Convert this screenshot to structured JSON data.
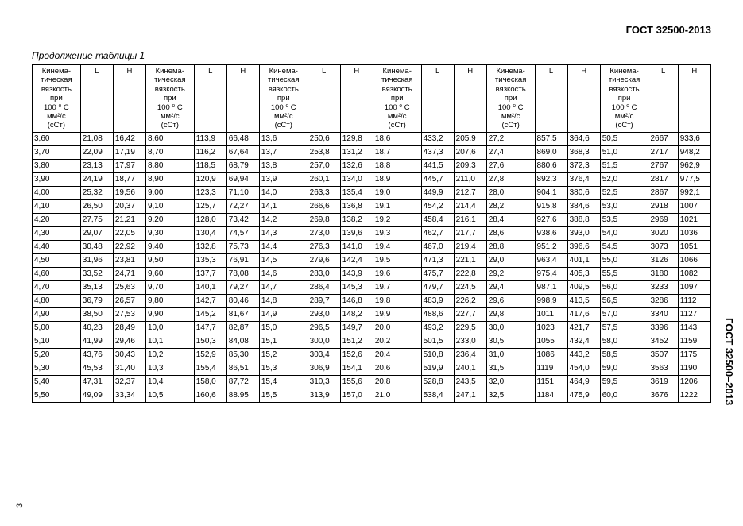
{
  "doc": {
    "standard": "ГОСТ 32500-2013",
    "caption": "Продолжение таблицы 1",
    "side_label": "ГОСТ 32500–2013",
    "page": "3"
  },
  "header_block": {
    "visc": "Кинема-\nтическая\nвязкость\nпри\n100 ⁰ С\nмм²/с\n(сСт)",
    "L": "L",
    "H": "H"
  },
  "rows": [
    [
      "3,60",
      "21,08",
      "16,42",
      "8,60",
      "113,9",
      "66,48",
      "13,6",
      "250,6",
      "129,8",
      "18,6",
      "433,2",
      "205,9",
      "27,2",
      "857,5",
      "364,6",
      "50,5",
      "2667",
      "933,6"
    ],
    [
      "3,70",
      "22,09",
      "17,19",
      "8,70",
      "116,2",
      "67,64",
      "13,7",
      "253,8",
      "131,2",
      "18,7",
      "437,3",
      "207,6",
      "27,4",
      "869,0",
      "368,3",
      "51,0",
      "2717",
      "948,2"
    ],
    [
      "3,80",
      "23,13",
      "17,97",
      "8,80",
      "118,5",
      "68,79",
      "13,8",
      "257,0",
      "132,6",
      "18,8",
      "441,5",
      "209,3",
      "27,6",
      "880,6",
      "372,3",
      "51,5",
      "2767",
      "962,9"
    ],
    [
      "3,90",
      "24,19",
      "18,77",
      "8,90",
      "120,9",
      "69,94",
      "13,9",
      "260,1",
      "134,0",
      "18,9",
      "445,7",
      "211,0",
      "27,8",
      "892,3",
      "376,4",
      "52,0",
      "2817",
      "977,5"
    ],
    [
      "4,00",
      "25,32",
      "19,56",
      "9,00",
      "123,3",
      "71,10",
      "14,0",
      "263,3",
      "135,4",
      "19,0",
      "449,9",
      "212,7",
      "28,0",
      "904,1",
      "380,6",
      "52,5",
      "2867",
      "992,1"
    ],
    [
      "4,10",
      "26,50",
      "20,37",
      "9,10",
      "125,7",
      "72,27",
      "14,1",
      "266,6",
      "136,8",
      "19,1",
      "454,2",
      "214,4",
      "28,2",
      "915,8",
      "384,6",
      "53,0",
      "2918",
      "1007"
    ],
    [
      "4,20",
      "27,75",
      "21,21",
      "9,20",
      "128,0",
      "73,42",
      "14,2",
      "269,8",
      "138,2",
      "19,2",
      "458,4",
      "216,1",
      "28,4",
      "927,6",
      "388,8",
      "53,5",
      "2969",
      "1021"
    ],
    [
      "4,30",
      "29,07",
      "22,05",
      "9,30",
      "130,4",
      "74,57",
      "14,3",
      "273,0",
      "139,6",
      "19,3",
      "462,7",
      "217,7",
      "28,6",
      "938,6",
      "393,0",
      "54,0",
      "3020",
      "1036"
    ],
    [
      "4,40",
      "30,48",
      "22,92",
      "9,40",
      "132,8",
      "75,73",
      "14,4",
      "276,3",
      "141,0",
      "19,4",
      "467,0",
      "219,4",
      "28,8",
      "951,2",
      "396,6",
      "54,5",
      "3073",
      "1051"
    ],
    [
      "4,50",
      "31,96",
      "23,81",
      "9,50",
      "135,3",
      "76,91",
      "14,5",
      "279,6",
      "142,4",
      "19,5",
      "471,3",
      "221,1",
      "29,0",
      "963,4",
      "401,1",
      "55,0",
      "3126",
      "1066"
    ],
    [
      "4,60",
      "33,52",
      "24,71",
      "9,60",
      "137,7",
      "78,08",
      "14,6",
      "283,0",
      "143,9",
      "19,6",
      "475,7",
      "222,8",
      "29,2",
      "975,4",
      "405,3",
      "55,5",
      "3180",
      "1082"
    ],
    [
      "4,70",
      "35,13",
      "25,63",
      "9,70",
      "140,1",
      "79,27",
      "14,7",
      "286,4",
      "145,3",
      "19,7",
      "479,7",
      "224,5",
      "29,4",
      "987,1",
      "409,5",
      "56,0",
      "3233",
      "1097"
    ],
    [
      "4,80",
      "36,79",
      "26,57",
      "9,80",
      "142,7",
      "80,46",
      "14,8",
      "289,7",
      "146,8",
      "19,8",
      "483,9",
      "226,2",
      "29,6",
      "998,9",
      "413,5",
      "56,5",
      "3286",
      "1112"
    ],
    [
      "4,90",
      "38,50",
      "27,53",
      "9,90",
      "145,2",
      "81,67",
      "14,9",
      "293,0",
      "148,2",
      "19,9",
      "488,6",
      "227,7",
      "29,8",
      "1011",
      "417,6",
      "57,0",
      "3340",
      "1127"
    ],
    [
      "5,00",
      "40,23",
      "28,49",
      "10,0",
      "147,7",
      "82,87",
      "15,0",
      "296,5",
      "149,7",
      "20,0",
      "493,2",
      "229,5",
      "30,0",
      "1023",
      "421,7",
      "57,5",
      "3396",
      "1143"
    ],
    [
      "5,10",
      "41,99",
      "29,46",
      "10,1",
      "150,3",
      "84,08",
      "15,1",
      "300,0",
      "151,2",
      "20,2",
      "501,5",
      "233,0",
      "30,5",
      "1055",
      "432,4",
      "58,0",
      "3452",
      "1159"
    ],
    [
      "5,20",
      "43,76",
      "30,43",
      "10,2",
      "152,9",
      "85,30",
      "15,2",
      "303,4",
      "152,6",
      "20,4",
      "510,8",
      "236,4",
      "31,0",
      "1086",
      "443,2",
      "58,5",
      "3507",
      "1175"
    ],
    [
      "5,30",
      "45,53",
      "31,40",
      "10,3",
      "155,4",
      "86,51",
      "15,3",
      "306,9",
      "154,1",
      "20,6",
      "519,9",
      "240,1",
      "31,5",
      "1119",
      "454,0",
      "59,0",
      "3563",
      "1190"
    ],
    [
      "5,40",
      "47,31",
      "32,37",
      "10,4",
      "158,0",
      "87,72",
      "15,4",
      "310,3",
      "155,6",
      "20,8",
      "528,8",
      "243,5",
      "32,0",
      "1151",
      "464,9",
      "59,5",
      "3619",
      "1206"
    ],
    [
      "5,50",
      "49,09",
      "33,34",
      "10,5",
      "160,6",
      "88.95",
      "15,5",
      "313,9",
      "157,0",
      "21,0",
      "538,4",
      "247,1",
      "32,5",
      "1184",
      "475,9",
      "60,0",
      "3676",
      "1222"
    ]
  ]
}
